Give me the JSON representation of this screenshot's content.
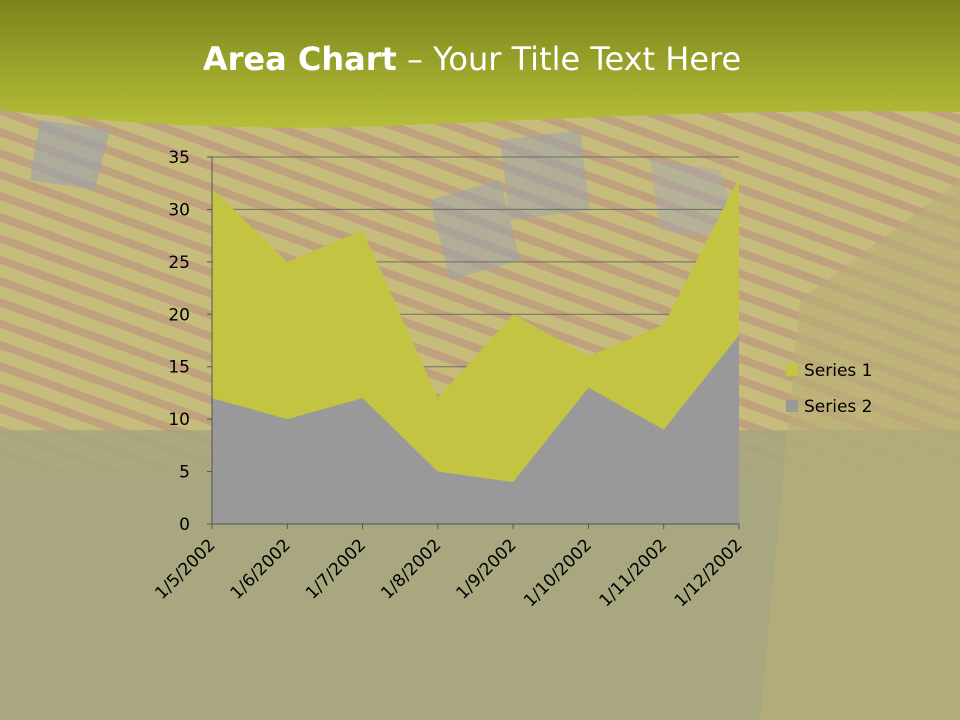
{
  "slide": {
    "title_bold": "Area Chart",
    "title_rest": " – Your Title Text Here"
  },
  "colors": {
    "header_top": "#7f8a1e",
    "header_bottom": "#b5be3a",
    "series1": "#c3c442",
    "series2": "#999999"
  },
  "chart_data": {
    "type": "area",
    "categories": [
      "1/5/2002",
      "1/6/2002",
      "1/7/2002",
      "1/8/2002",
      "1/9/2002",
      "1/10/2002",
      "1/11/2002",
      "1/12/2002"
    ],
    "series": [
      {
        "name": "Series 1",
        "values": [
          32,
          25,
          28,
          12,
          20,
          16,
          19,
          33
        ]
      },
      {
        "name": "Series 2",
        "values": [
          12,
          10,
          12,
          5,
          4,
          13,
          9,
          18
        ]
      }
    ],
    "y_ticks": [
      "0",
      "5",
      "10",
      "15",
      "20",
      "25",
      "30",
      "35"
    ],
    "ylim": [
      0,
      35
    ],
    "grid": true,
    "legend": "right"
  }
}
